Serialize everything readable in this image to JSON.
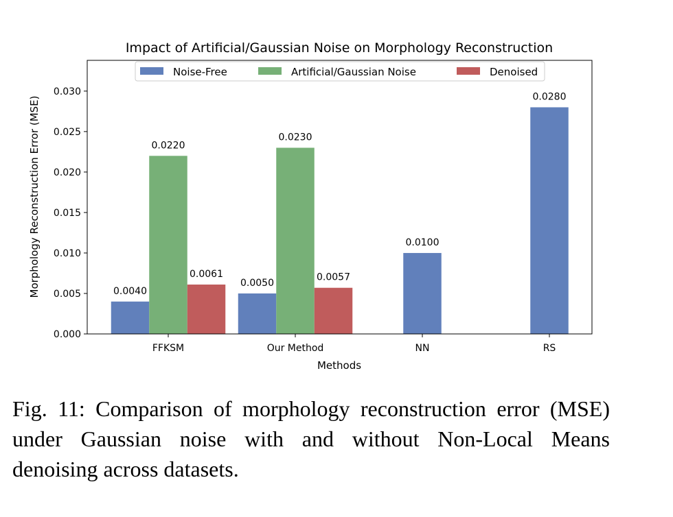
{
  "chart_data": {
    "type": "bar",
    "title": "Impact of Artificial/Gaussian Noise on Morphology Reconstruction",
    "xlabel": "Methods",
    "ylabel": "Morphology Reconstruction Error (MSE)",
    "categories": [
      "FFKSM",
      "Our Method",
      "NN",
      "RS"
    ],
    "series": [
      {
        "name": "Noise-Free",
        "color": "#6180bb",
        "values": [
          0.004,
          0.005,
          0.01,
          0.028
        ],
        "labels": [
          "0.0040",
          "0.0050",
          "0.0100",
          "0.0280"
        ]
      },
      {
        "name": "Artificial/Gaussian Noise",
        "color": "#77b077",
        "values": [
          0.022,
          0.023,
          null,
          null
        ],
        "labels": [
          "0.0220",
          "0.0230",
          "",
          ""
        ]
      },
      {
        "name": "Denoised",
        "color": "#c05c5c",
        "values": [
          0.0061,
          0.0057,
          null,
          null
        ],
        "labels": [
          "0.0061",
          "0.0057",
          "",
          ""
        ]
      }
    ],
    "ylim": [
      0,
      0.0338
    ],
    "yticks": [
      "0.000",
      "0.005",
      "0.010",
      "0.015",
      "0.020",
      "0.025",
      "0.030"
    ],
    "grid": false,
    "legend": "top-center"
  },
  "caption": "Fig. 11: Comparison of morphology reconstruction error (MSE) under Gaussian noise with and without Non-Local Means denoising across datasets."
}
